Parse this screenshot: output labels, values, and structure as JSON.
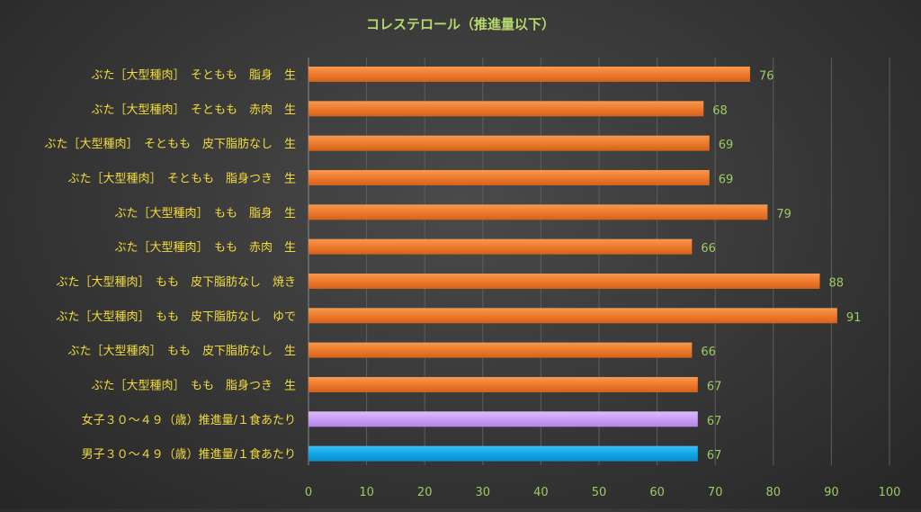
{
  "chart_data": {
    "type": "bar",
    "orientation": "horizontal",
    "title": "コレステロール（推進量以下）",
    "xlabel": "",
    "ylabel": "",
    "xlim": [
      0,
      100
    ],
    "x_ticks": [
      0,
      10,
      20,
      30,
      40,
      50,
      60,
      70,
      80,
      90,
      100
    ],
    "grid": "vertical",
    "legend": "none",
    "categories": [
      "ぶた［大型種肉］　そともも　脂身　生",
      "ぶた［大型種肉］　そともも　赤肉　生",
      "ぶた［大型種肉］　そともも　皮下脂肪なし　生",
      "ぶた［大型種肉］　そともも　脂身つき　生",
      "ぶた［大型種肉］　もも　脂身　生",
      "ぶた［大型種肉］　もも　赤肉　生",
      "ぶた［大型種肉］　もも　皮下脂肪なし　焼き",
      "ぶた［大型種肉］　もも　皮下脂肪なし　ゆで",
      "ぶた［大型種肉］　もも　皮下脂肪なし　生",
      "ぶた［大型種肉］　もも　脂身つき　生",
      "女子３０～４９（歳）推進量/１食あたり",
      "男子３０～４９（歳）推進量/１食あたり"
    ],
    "values": [
      76,
      68,
      69,
      69,
      79,
      66,
      88,
      91,
      66,
      67,
      67,
      67
    ],
    "bar_colors": [
      "#ee7a2c",
      "#ee7a2c",
      "#ee7a2c",
      "#ee7a2c",
      "#ee7a2c",
      "#ee7a2c",
      "#ee7a2c",
      "#ee7a2c",
      "#ee7a2c",
      "#ee7a2c",
      "#c99ef5",
      "#10a6e6"
    ],
    "data_labels": [
      "76",
      "68",
      "69",
      "69",
      "79",
      "66",
      "88",
      "91",
      "66",
      "67",
      "67",
      "67"
    ]
  },
  "colors": {
    "title": "#b6d96b",
    "category_label": "#f2dc3c",
    "tick_label": "#9acd5e",
    "data_label": "#9acd5e",
    "grid": "#5e5e5e",
    "axis": "#8a8a8a"
  }
}
